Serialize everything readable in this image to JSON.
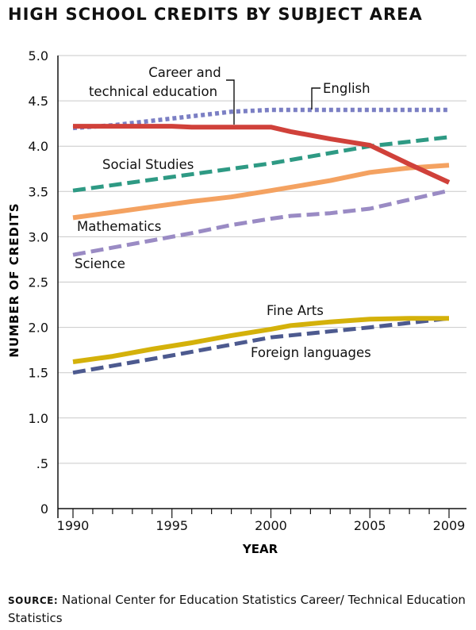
{
  "chart_data": {
    "type": "line",
    "title": "HIGH SCHOOL CREDITS BY SUBJECT AREA",
    "xlabel": "YEAR",
    "ylabel": "NUMBER OF CREDITS",
    "xlim": [
      1990,
      2009
    ],
    "ylim": [
      0,
      5.0
    ],
    "x_ticks": [
      1990,
      1995,
      2000,
      2005,
      2009
    ],
    "x_tick_labels": [
      "1990",
      "1995",
      "2000",
      "2005",
      "2009"
    ],
    "y_ticks": [
      0,
      0.5,
      1.0,
      1.5,
      2.0,
      2.5,
      3.0,
      3.5,
      4.0,
      4.5,
      5.0
    ],
    "y_tick_labels": [
      "0",
      ".5",
      "1.0",
      "1.5",
      "2.0",
      "2.5",
      "3.0",
      "3.5",
      "4.0",
      "4.5",
      "5.0"
    ],
    "grid": true,
    "series": [
      {
        "name": "English",
        "color": "#7b7fc4",
        "style": "dotted",
        "points": [
          [
            1990,
            4.2
          ],
          [
            1992,
            4.23
          ],
          [
            1994,
            4.28
          ],
          [
            1996,
            4.33
          ],
          [
            1998,
            4.38
          ],
          [
            2000,
            4.4
          ],
          [
            2005,
            4.4
          ],
          [
            2009,
            4.4
          ]
        ]
      },
      {
        "name": "Career and technical education",
        "color": "#d0413a",
        "style": "solid",
        "points": [
          [
            1990,
            4.22
          ],
          [
            1995,
            4.22
          ],
          [
            1996,
            4.21
          ],
          [
            2000,
            4.21
          ],
          [
            2001,
            4.16
          ],
          [
            2003,
            4.08
          ],
          [
            2005,
            4.01
          ],
          [
            2007,
            3.8
          ],
          [
            2009,
            3.6
          ]
        ]
      },
      {
        "name": "Social Studies",
        "color": "#2e9a84",
        "style": "dashed",
        "points": [
          [
            1990,
            3.51
          ],
          [
            1995,
            3.66
          ],
          [
            2000,
            3.81
          ],
          [
            2005,
            4.0
          ],
          [
            2009,
            4.1
          ]
        ]
      },
      {
        "name": "Mathematics",
        "color": "#f4a261",
        "style": "solid",
        "points": [
          [
            1990,
            3.21
          ],
          [
            1992,
            3.27
          ],
          [
            1994,
            3.33
          ],
          [
            1996,
            3.39
          ],
          [
            1998,
            3.44
          ],
          [
            2000,
            3.51
          ],
          [
            2003,
            3.62
          ],
          [
            2005,
            3.71
          ],
          [
            2007,
            3.76
          ],
          [
            2009,
            3.79
          ]
        ]
      },
      {
        "name": "Science",
        "color": "#9a8bc4",
        "style": "dashed",
        "points": [
          [
            1990,
            2.8
          ],
          [
            1992,
            2.88
          ],
          [
            1994,
            2.96
          ],
          [
            1996,
            3.04
          ],
          [
            1998,
            3.13
          ],
          [
            2000,
            3.2
          ],
          [
            2001,
            3.23
          ],
          [
            2003,
            3.26
          ],
          [
            2005,
            3.31
          ],
          [
            2007,
            3.41
          ],
          [
            2009,
            3.51
          ]
        ]
      },
      {
        "name": "Fine Arts",
        "color": "#d4b10a",
        "style": "solid",
        "points": [
          [
            1990,
            1.62
          ],
          [
            1992,
            1.68
          ],
          [
            1994,
            1.76
          ],
          [
            1996,
            1.83
          ],
          [
            1998,
            1.91
          ],
          [
            2000,
            1.98
          ],
          [
            2001,
            2.02
          ],
          [
            2003,
            2.06
          ],
          [
            2005,
            2.09
          ],
          [
            2007,
            2.1
          ],
          [
            2009,
            2.1
          ]
        ]
      },
      {
        "name": "Foreign languages",
        "color": "#4d5a8f",
        "style": "dashed",
        "points": [
          [
            1990,
            1.5
          ],
          [
            1995,
            1.69
          ],
          [
            2000,
            1.89
          ],
          [
            2005,
            2.0
          ],
          [
            2009,
            2.1
          ]
        ]
      }
    ],
    "annotations": [
      {
        "text": "Career and",
        "series": "Career and technical education"
      },
      {
        "text": "technical education",
        "series": "Career and technical education"
      },
      {
        "text": "English",
        "series": "English"
      },
      {
        "text": "Social Studies",
        "series": "Social Studies"
      },
      {
        "text": "Mathematics",
        "series": "Mathematics"
      },
      {
        "text": "Science",
        "series": "Science"
      },
      {
        "text": "Fine Arts",
        "series": "Fine Arts"
      },
      {
        "text": "Foreign languages",
        "series": "Foreign languages"
      }
    ]
  },
  "source": {
    "label": "SOURCE:",
    "text": "National Center for Education Statistics Career/ Technical Education Statistics"
  }
}
